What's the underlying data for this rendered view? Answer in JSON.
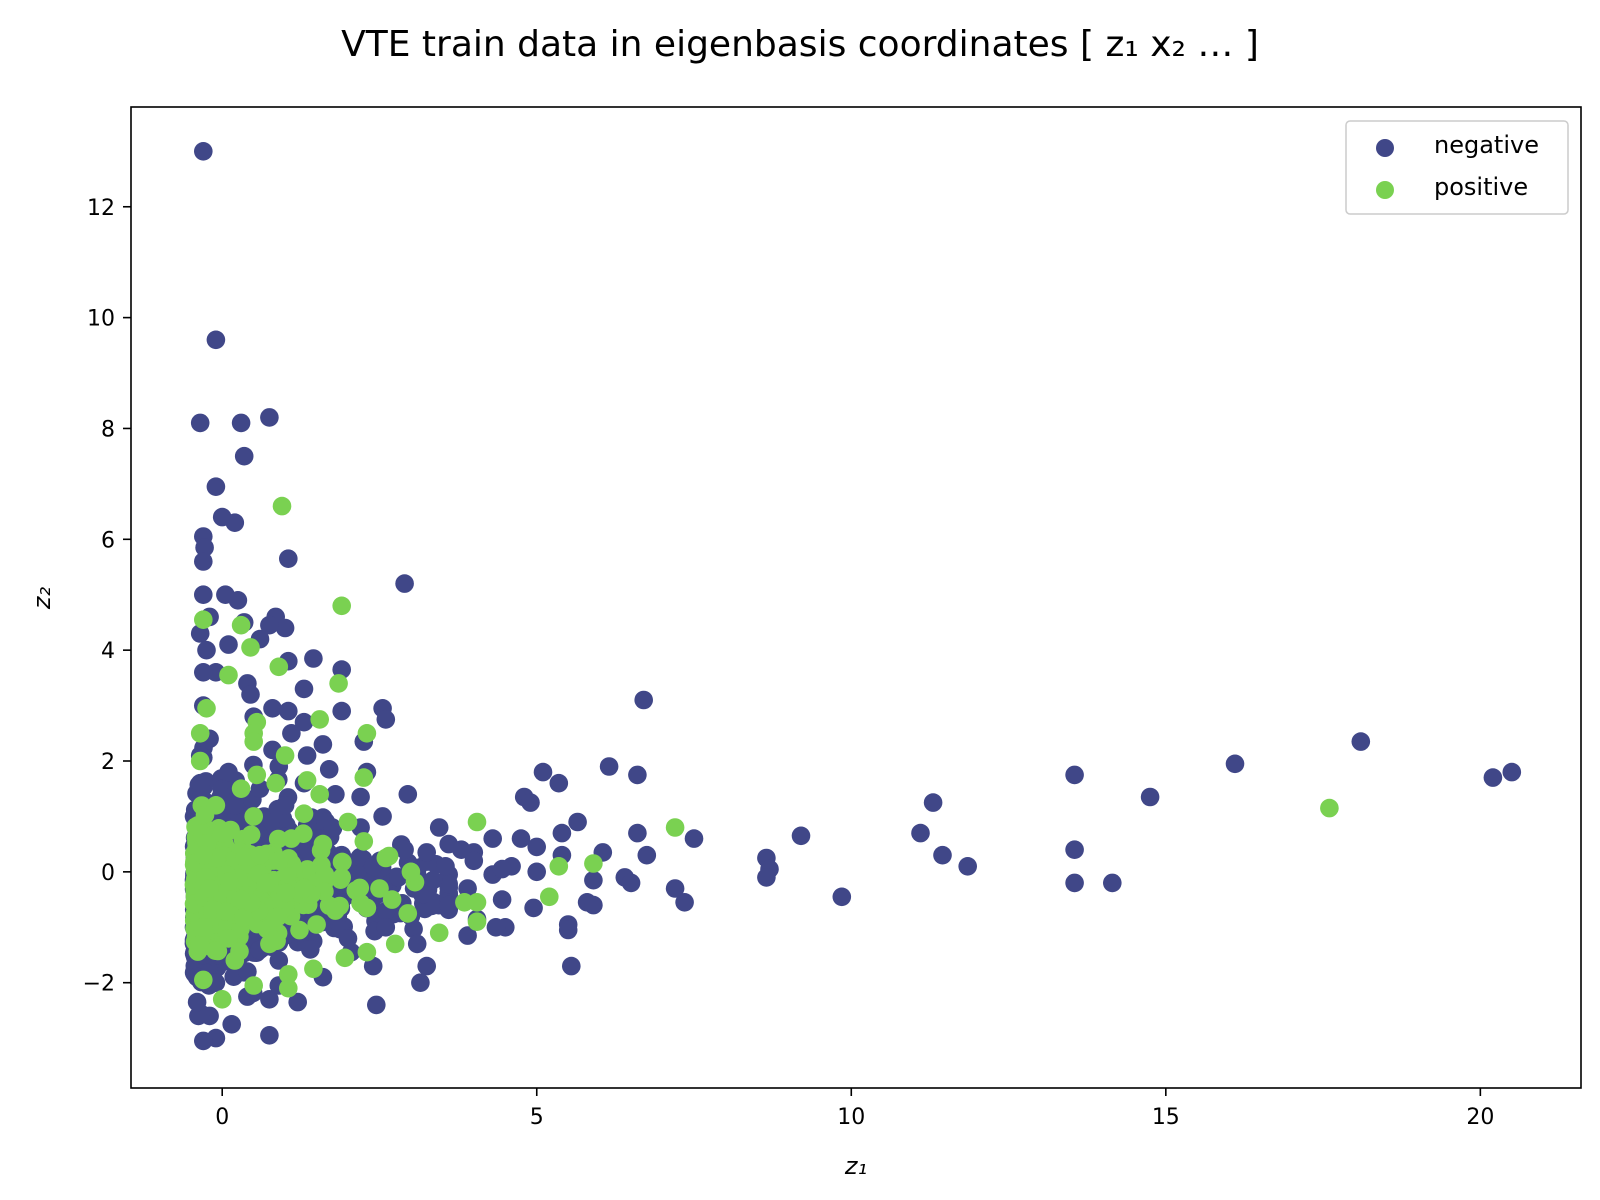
{
  "chart_data": {
    "type": "scatter",
    "title": "VTE train data in eigenbasis coordinates [ z₁  x₂  … ]",
    "xlabel": "z₁",
    "ylabel": "z₂",
    "xlim": [
      -1.45,
      21.6
    ],
    "ylim": [
      -3.9,
      13.8
    ],
    "xticks": [
      0,
      5,
      10,
      15,
      20
    ],
    "yticks": [
      -2,
      0,
      2,
      4,
      6,
      8,
      10,
      12
    ],
    "ytick_labels": [
      "−2",
      "0",
      "2",
      "4",
      "6",
      "8",
      "10",
      "12"
    ],
    "grid": false,
    "legend_position": "top-right",
    "series": [
      {
        "name": "negative",
        "color": "#404788",
        "points": [
          [
            -0.3,
            13.0
          ],
          [
            -0.1,
            9.6
          ],
          [
            -0.35,
            8.1
          ],
          [
            0.3,
            8.1
          ],
          [
            0.75,
            8.2
          ],
          [
            0.35,
            7.5
          ],
          [
            -0.1,
            6.95
          ],
          [
            0.0,
            6.4
          ],
          [
            0.2,
            6.3
          ],
          [
            -0.3,
            6.05
          ],
          [
            -0.28,
            5.85
          ],
          [
            -0.3,
            5.6
          ],
          [
            1.05,
            5.65
          ],
          [
            2.9,
            5.2
          ],
          [
            -0.3,
            5.0
          ],
          [
            0.05,
            5.0
          ],
          [
            0.25,
            4.9
          ],
          [
            -0.2,
            4.6
          ],
          [
            0.85,
            4.6
          ],
          [
            1.0,
            4.4
          ],
          [
            0.75,
            4.45
          ],
          [
            0.35,
            4.5
          ],
          [
            -0.35,
            4.3
          ],
          [
            0.6,
            4.2
          ],
          [
            1.05,
            3.8
          ],
          [
            1.45,
            3.85
          ],
          [
            1.9,
            3.65
          ],
          [
            6.7,
            3.1
          ],
          [
            1.3,
            3.3
          ],
          [
            0.4,
            3.4
          ],
          [
            2.55,
            2.95
          ],
          [
            2.6,
            2.75
          ],
          [
            1.9,
            2.9
          ],
          [
            1.05,
            2.9
          ],
          [
            0.8,
            2.95
          ],
          [
            1.3,
            2.7
          ],
          [
            1.1,
            2.5
          ],
          [
            1.6,
            2.3
          ],
          [
            0.5,
            2.8
          ],
          [
            1.35,
            2.1
          ],
          [
            2.25,
            2.35
          ],
          [
            2.3,
            1.8
          ],
          [
            1.3,
            1.6
          ],
          [
            1.7,
            1.85
          ],
          [
            0.9,
            1.9
          ],
          [
            2.2,
            1.35
          ],
          [
            1.8,
            1.4
          ],
          [
            2.95,
            1.4
          ],
          [
            5.1,
            1.8
          ],
          [
            5.35,
            1.6
          ],
          [
            4.8,
            1.35
          ],
          [
            4.9,
            1.25
          ],
          [
            6.15,
            1.9
          ],
          [
            6.6,
            1.75
          ],
          [
            2.55,
            1.0
          ],
          [
            2.2,
            0.8
          ],
          [
            1.75,
            0.8
          ],
          [
            3.45,
            0.8
          ],
          [
            5.65,
            0.9
          ],
          [
            5.4,
            0.7
          ],
          [
            6.6,
            0.7
          ],
          [
            4.75,
            0.6
          ],
          [
            4.3,
            0.6
          ],
          [
            3.6,
            0.5
          ],
          [
            3.8,
            0.4
          ],
          [
            4.0,
            0.35
          ],
          [
            3.25,
            0.35
          ],
          [
            5.0,
            0.45
          ],
          [
            6.05,
            0.35
          ],
          [
            6.75,
            0.3
          ],
          [
            7.5,
            0.6
          ],
          [
            9.2,
            0.65
          ],
          [
            8.65,
            0.25
          ],
          [
            8.7,
            0.05
          ],
          [
            8.65,
            -0.1
          ],
          [
            9.85,
            -0.45
          ],
          [
            11.1,
            0.7
          ],
          [
            11.3,
            1.25
          ],
          [
            11.45,
            0.3
          ],
          [
            11.85,
            0.1
          ],
          [
            13.55,
            1.75
          ],
          [
            13.55,
            0.4
          ],
          [
            13.55,
            -0.2
          ],
          [
            14.15,
            -0.2
          ],
          [
            14.75,
            1.35
          ],
          [
            16.1,
            1.95
          ],
          [
            18.1,
            2.35
          ],
          [
            20.2,
            1.7
          ],
          [
            20.5,
            1.8
          ],
          [
            5.0,
            0.0
          ],
          [
            5.4,
            0.3
          ],
          [
            5.9,
            -0.15
          ],
          [
            6.4,
            -0.1
          ],
          [
            6.5,
            -0.2
          ],
          [
            7.2,
            -0.3
          ],
          [
            7.35,
            -0.55
          ],
          [
            5.8,
            -0.55
          ],
          [
            5.9,
            -0.6
          ],
          [
            5.5,
            -0.95
          ],
          [
            5.5,
            -1.05
          ],
          [
            5.55,
            -1.7
          ],
          [
            4.95,
            -0.65
          ],
          [
            4.45,
            -0.5
          ],
          [
            4.5,
            -1.0
          ],
          [
            4.35,
            -1.0
          ],
          [
            4.05,
            -0.85
          ],
          [
            3.9,
            -1.15
          ],
          [
            4.3,
            -0.05
          ],
          [
            4.6,
            0.1
          ],
          [
            4.45,
            0.05
          ],
          [
            4.0,
            0.2
          ],
          [
            3.55,
            0.1
          ],
          [
            3.35,
            -0.15
          ],
          [
            3.05,
            -0.3
          ],
          [
            3.1,
            -1.3
          ],
          [
            3.25,
            -1.7
          ],
          [
            3.15,
            -2.0
          ],
          [
            2.45,
            -2.4
          ],
          [
            2.4,
            -1.7
          ],
          [
            2.05,
            -1.45
          ],
          [
            1.6,
            -1.9
          ],
          [
            1.2,
            -2.35
          ],
          [
            0.75,
            -2.95
          ],
          [
            0.75,
            -2.3
          ],
          [
            0.15,
            -2.75
          ],
          [
            -0.1,
            -3.0
          ],
          [
            -0.3,
            -3.05
          ],
          [
            -0.2,
            -2.6
          ],
          [
            0.4,
            -2.25
          ],
          [
            0.9,
            -2.05
          ],
          [
            -0.35,
            -2.55
          ],
          [
            -0.4,
            -2.35
          ],
          [
            -0.35,
            -0.5
          ],
          [
            -0.3,
            0.4
          ],
          [
            0.0,
            0.9
          ],
          [
            0.2,
            1.2
          ],
          [
            0.6,
            1.5
          ],
          [
            0.1,
            1.8
          ],
          [
            -0.2,
            2.4
          ],
          [
            -0.3,
            3.0
          ],
          [
            -0.1,
            3.6
          ],
          [
            0.1,
            4.1
          ],
          [
            0.45,
            3.2
          ],
          [
            0.8,
            2.2
          ],
          [
            1.0,
            1.2
          ],
          [
            1.5,
            0.6
          ],
          [
            1.9,
            0.3
          ],
          [
            2.4,
            0.1
          ],
          [
            2.8,
            -0.1
          ],
          [
            3.2,
            -0.4
          ],
          [
            3.6,
            -0.6
          ],
          [
            3.0,
            -0.8
          ],
          [
            2.6,
            -1.0
          ],
          [
            2.0,
            -1.2
          ],
          [
            1.4,
            -1.4
          ],
          [
            0.9,
            -1.6
          ],
          [
            0.4,
            -1.8
          ],
          [
            -0.1,
            -2.0
          ],
          [
            -0.3,
            -1.5
          ],
          [
            -0.35,
            1.6
          ],
          [
            -0.35,
            2.1
          ],
          [
            -0.3,
            3.6
          ],
          [
            -0.25,
            4.0
          ],
          [
            0.5,
            0.5
          ],
          [
            1.2,
            -0.6
          ],
          [
            2.2,
            -0.5
          ],
          [
            0.7,
            -0.9
          ],
          [
            1.7,
            0.2
          ],
          [
            2.9,
            0.4
          ],
          [
            3.9,
            -0.3
          ]
        ]
      },
      {
        "name": "positive",
        "color": "#7AD151",
        "points": [
          [
            0.95,
            6.6
          ],
          [
            1.9,
            4.8
          ],
          [
            -0.3,
            4.55
          ],
          [
            0.3,
            4.45
          ],
          [
            0.45,
            4.05
          ],
          [
            0.1,
            3.55
          ],
          [
            0.9,
            3.7
          ],
          [
            1.85,
            3.4
          ],
          [
            -0.25,
            2.95
          ],
          [
            1.55,
            2.75
          ],
          [
            0.55,
            2.7
          ],
          [
            0.5,
            2.5
          ],
          [
            2.3,
            2.5
          ],
          [
            -0.35,
            2.5
          ],
          [
            0.5,
            2.35
          ],
          [
            1.0,
            2.1
          ],
          [
            -0.35,
            2.0
          ],
          [
            0.55,
            1.75
          ],
          [
            2.25,
            1.7
          ],
          [
            0.85,
            1.6
          ],
          [
            1.35,
            1.65
          ],
          [
            1.55,
            1.4
          ],
          [
            1.3,
            1.05
          ],
          [
            4.05,
            0.9
          ],
          [
            7.2,
            0.8
          ],
          [
            17.6,
            1.15
          ],
          [
            5.35,
            0.1
          ],
          [
            5.9,
            0.15
          ],
          [
            5.2,
            -0.45
          ],
          [
            3.85,
            -0.55
          ],
          [
            4.05,
            -0.55
          ],
          [
            4.05,
            -0.9
          ],
          [
            3.45,
            -1.1
          ],
          [
            2.75,
            -1.3
          ],
          [
            2.3,
            -1.45
          ],
          [
            1.95,
            -1.55
          ],
          [
            1.45,
            -1.75
          ],
          [
            1.05,
            -1.85
          ],
          [
            1.05,
            -2.1
          ],
          [
            0.5,
            -2.05
          ],
          [
            0.0,
            -2.3
          ],
          [
            -0.3,
            -1.95
          ],
          [
            2.25,
            0.55
          ],
          [
            2.6,
            0.25
          ],
          [
            3.0,
            0.0
          ],
          [
            2.95,
            -0.75
          ],
          [
            2.3,
            -0.65
          ],
          [
            1.5,
            -0.95
          ],
          [
            0.75,
            -1.3
          ],
          [
            0.2,
            -1.6
          ],
          [
            -0.3,
            -1.0
          ],
          [
            -0.3,
            0.3
          ],
          [
            0.0,
            0.7
          ],
          [
            0.5,
            1.0
          ],
          [
            0.9,
            0.2
          ],
          [
            1.3,
            -0.3
          ],
          [
            1.9,
            -0.1
          ],
          [
            2.5,
            -0.3
          ],
          [
            0.3,
            -0.5
          ],
          [
            -0.1,
            1.2
          ],
          [
            0.3,
            1.5
          ],
          [
            1.6,
            0.5
          ],
          [
            2.0,
            0.9
          ],
          [
            0.7,
            -0.2
          ],
          [
            1.1,
            0.6
          ],
          [
            -0.2,
            -0.3
          ],
          [
            0.1,
            -1.2
          ],
          [
            0.6,
            0.3
          ],
          [
            1.8,
            -0.7
          ],
          [
            2.7,
            -0.5
          ]
        ]
      }
    ],
    "dense_clusters": [
      {
        "series": "negative",
        "count": 1300,
        "x_range": [
          -0.45,
          3.6
        ],
        "y_range": [
          -2.6,
          4.9
        ],
        "x_decay": 0.8,
        "y_center": -0.2,
        "y_spread": 1.15,
        "y_taper": 0.18
      },
      {
        "series": "positive",
        "count": 480,
        "x_range": [
          -0.45,
          3.1
        ],
        "y_range": [
          -2.0,
          2.0
        ],
        "x_decay": 0.55,
        "y_center": -0.3,
        "y_spread": 0.75,
        "y_taper": 0.15
      }
    ]
  }
}
